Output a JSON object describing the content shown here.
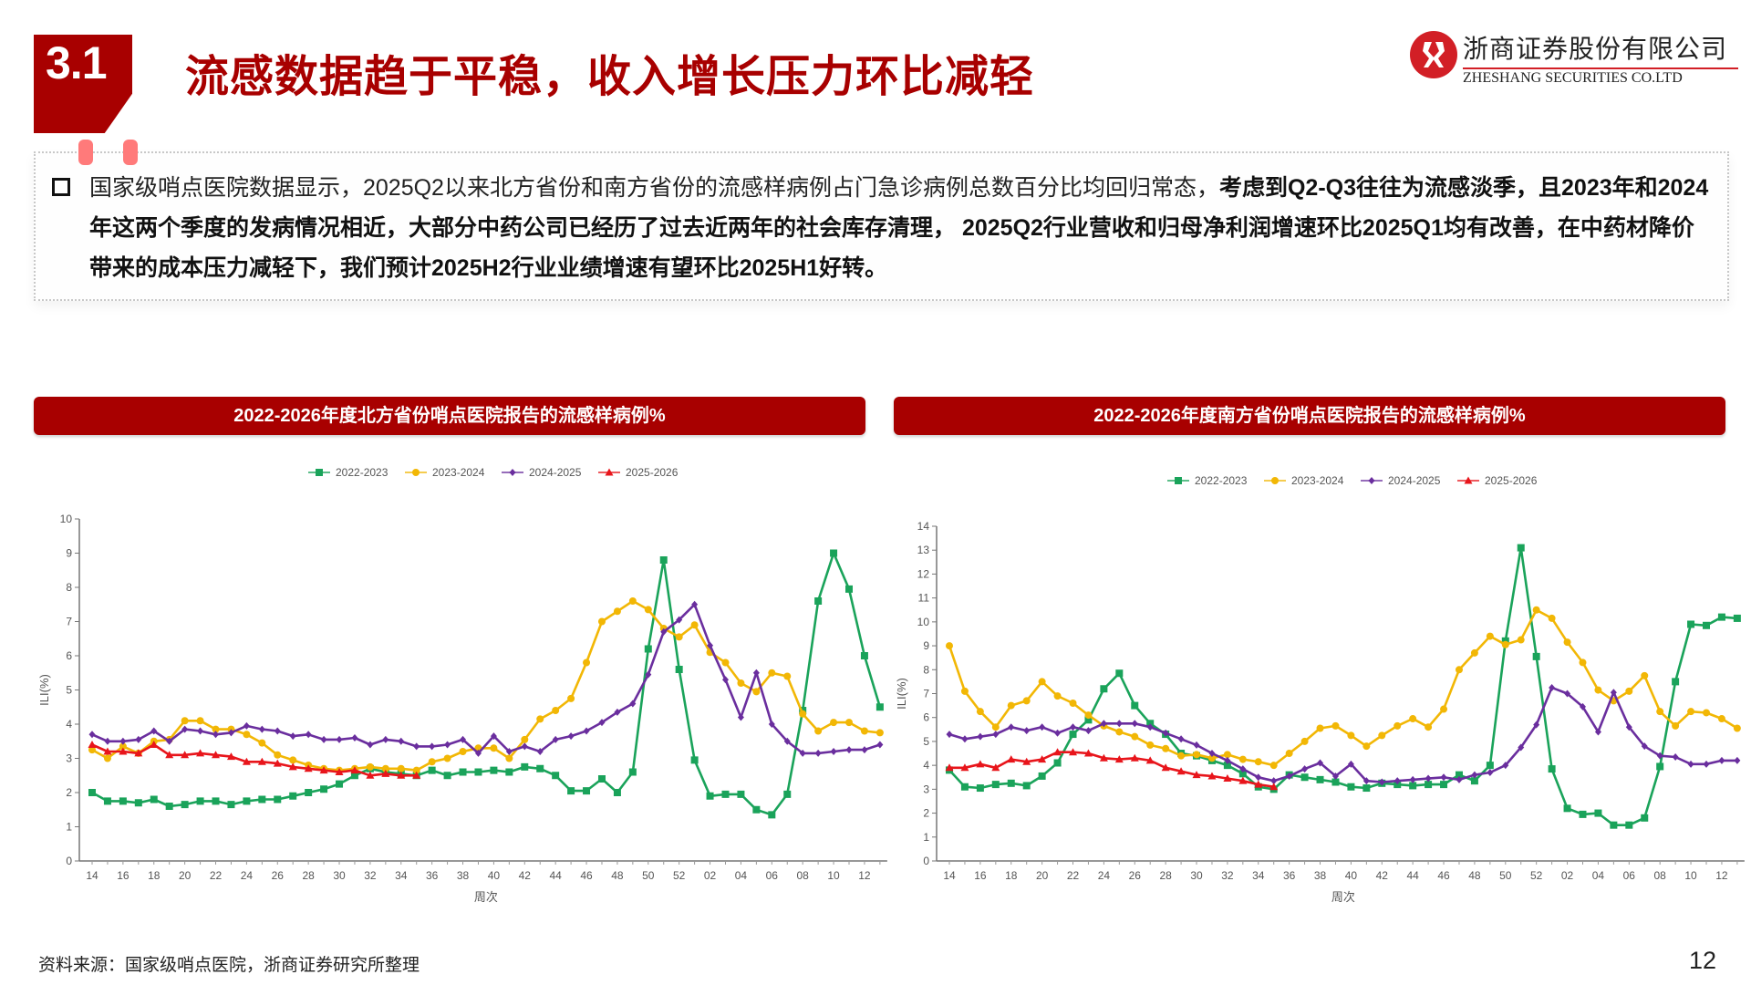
{
  "header": {
    "section_number": "3.1",
    "title": "流感数据趋于平稳，收入增长压力环比减轻",
    "logo_cn": "浙商证券股份有限公司",
    "logo_en": "ZHESHANG SECURITIES CO.LTD",
    "brand_color": "#a80000"
  },
  "summary": {
    "normal_text": "国家级哨点医院数据显示，2025Q2以来北方省份和南方省份的流感样病例占门急诊病例总数百分比均回归常态，",
    "bold_text": "考虑到Q2-Q3往往为流感淡季，且2023年和2024年这两个季度的发病情况相近，大部分中药公司已经历了过去近两年的社会库存清理， 2025Q2行业营收和归母净利润增速环比2025Q1均有改善，在中药材降价带来的成本压力减轻下，我们预计2025H2行业业绩增速有望环比2025H1好转。"
  },
  "footer": {
    "source": "资料来源：国家级哨点医院，浙商证券研究所整理",
    "page_number": "12"
  },
  "chart_data": [
    {
      "type": "line",
      "title": "2022-2026年度北方省份哨点医院报告的流感样病例%",
      "xlabel": "周次",
      "ylabel": "ILI(%)",
      "ylim": [
        0,
        10
      ],
      "yticks": [
        0,
        1,
        2,
        3,
        4,
        5,
        6,
        7,
        8,
        9,
        10
      ],
      "grid": false,
      "legend_position": "top",
      "x": [
        "14",
        "15",
        "16",
        "17",
        "18",
        "19",
        "20",
        "21",
        "22",
        "23",
        "24",
        "25",
        "26",
        "27",
        "28",
        "29",
        "30",
        "31",
        "32",
        "33",
        "34",
        "35",
        "36",
        "37",
        "38",
        "39",
        "40",
        "41",
        "42",
        "43",
        "44",
        "45",
        "46",
        "47",
        "48",
        "49",
        "50",
        "51",
        "52",
        "01",
        "02",
        "03",
        "04",
        "05",
        "06",
        "07",
        "08",
        "09",
        "10",
        "11",
        "12",
        "13"
      ],
      "xtick_labels": [
        "14",
        "16",
        "18",
        "20",
        "22",
        "24",
        "26",
        "28",
        "30",
        "32",
        "34",
        "36",
        "38",
        "40",
        "42",
        "44",
        "46",
        "48",
        "50",
        "52",
        "02",
        "04",
        "06",
        "08",
        "10",
        "12"
      ],
      "series": [
        {
          "name": "2022-2023",
          "color": "#1aa35a",
          "marker": "square",
          "values": [
            2.0,
            1.75,
            1.75,
            1.7,
            1.8,
            1.6,
            1.65,
            1.75,
            1.75,
            1.65,
            1.75,
            1.8,
            1.8,
            1.9,
            2.0,
            2.1,
            2.25,
            2.5,
            2.7,
            2.6,
            2.55,
            2.5,
            2.65,
            2.5,
            2.6,
            2.6,
            2.65,
            2.6,
            2.75,
            2.7,
            2.5,
            2.05,
            2.05,
            2.4,
            2.0,
            2.6,
            6.2,
            8.8,
            5.6,
            2.95,
            1.9,
            1.95,
            1.95,
            1.5,
            1.35,
            1.95,
            4.4,
            7.6,
            9.0,
            7.95,
            6.0,
            4.5
          ]
        },
        {
          "name": "2023-2024",
          "color": "#f2b705",
          "marker": "circle",
          "values": [
            3.25,
            3.0,
            3.35,
            3.15,
            3.5,
            3.55,
            4.1,
            4.1,
            3.85,
            3.85,
            3.7,
            3.45,
            3.1,
            2.95,
            2.8,
            2.7,
            2.65,
            2.7,
            2.75,
            2.7,
            2.7,
            2.65,
            2.9,
            3.0,
            3.2,
            3.3,
            3.3,
            3.0,
            3.55,
            4.15,
            4.4,
            4.75,
            5.8,
            7.0,
            7.3,
            7.6,
            7.35,
            6.8,
            6.55,
            6.9,
            6.1,
            5.8,
            5.2,
            4.95,
            5.5,
            5.4,
            4.3,
            3.8,
            4.05,
            4.05,
            3.8,
            3.75
          ]
        },
        {
          "name": "2024-2025",
          "color": "#6a2e9e",
          "marker": "diamond",
          "values": [
            3.7,
            3.5,
            3.5,
            3.55,
            3.8,
            3.5,
            3.85,
            3.8,
            3.7,
            3.75,
            3.95,
            3.85,
            3.8,
            3.65,
            3.7,
            3.55,
            3.55,
            3.6,
            3.4,
            3.55,
            3.5,
            3.35,
            3.35,
            3.4,
            3.55,
            3.15,
            3.65,
            3.2,
            3.35,
            3.2,
            3.55,
            3.65,
            3.8,
            4.05,
            4.35,
            4.6,
            5.45,
            6.7,
            7.05,
            7.5,
            6.3,
            5.3,
            4.2,
            5.5,
            4.0,
            3.5,
            3.15,
            3.15,
            3.2,
            3.25,
            3.25,
            3.4
          ]
        },
        {
          "name": "2025-2026",
          "color": "#e8151b",
          "marker": "triangle",
          "values": [
            3.4,
            3.2,
            3.2,
            3.15,
            3.4,
            3.1,
            3.1,
            3.15,
            3.1,
            3.05,
            2.9,
            2.9,
            2.85,
            2.75,
            2.7,
            2.65,
            2.6,
            2.65,
            2.5,
            2.55,
            2.5,
            2.5,
            null,
            null,
            null,
            null,
            null,
            null,
            null,
            null,
            null,
            null,
            null,
            null,
            null,
            null,
            null,
            null,
            null,
            null,
            null,
            null,
            null,
            null,
            null,
            null,
            null,
            null,
            null,
            null,
            null,
            null
          ]
        }
      ]
    },
    {
      "type": "line",
      "title": "2022-2026年度南方省份哨点医院报告的流感样病例%",
      "xlabel": "周次",
      "ylabel": "ILI(%)",
      "ylim": [
        0,
        14
      ],
      "yticks": [
        0,
        1,
        2,
        3,
        4,
        5,
        6,
        7,
        8,
        9,
        10,
        11,
        12,
        13,
        14
      ],
      "grid": false,
      "legend_position": "top",
      "x": [
        "14",
        "15",
        "16",
        "17",
        "18",
        "19",
        "20",
        "21",
        "22",
        "23",
        "24",
        "25",
        "26",
        "27",
        "28",
        "29",
        "30",
        "31",
        "32",
        "33",
        "34",
        "35",
        "36",
        "37",
        "38",
        "39",
        "40",
        "41",
        "42",
        "43",
        "44",
        "45",
        "46",
        "47",
        "48",
        "49",
        "50",
        "51",
        "52",
        "01",
        "02",
        "03",
        "04",
        "05",
        "06",
        "07",
        "08",
        "09",
        "10",
        "11",
        "12",
        "13"
      ],
      "xtick_labels": [
        "14",
        "16",
        "18",
        "20",
        "22",
        "24",
        "26",
        "28",
        "30",
        "32",
        "34",
        "36",
        "38",
        "40",
        "42",
        "44",
        "46",
        "48",
        "50",
        "52",
        "02",
        "04",
        "06",
        "08",
        "10",
        "12"
      ],
      "series": [
        {
          "name": "2022-2023",
          "color": "#1aa35a",
          "marker": "square",
          "values": [
            3.8,
            3.1,
            3.05,
            3.2,
            3.25,
            3.15,
            3.55,
            4.1,
            5.3,
            5.9,
            7.2,
            7.85,
            6.5,
            5.75,
            5.3,
            4.5,
            4.4,
            4.2,
            4.0,
            3.65,
            3.1,
            3.0,
            3.6,
            3.5,
            3.4,
            3.3,
            3.1,
            3.05,
            3.25,
            3.2,
            3.15,
            3.2,
            3.2,
            3.6,
            3.35,
            4.0,
            9.2,
            13.1,
            8.55,
            3.85,
            2.2,
            1.95,
            2.0,
            1.5,
            1.5,
            1.8,
            3.95,
            7.5,
            9.9,
            9.85,
            10.2,
            10.15
          ]
        },
        {
          "name": "2023-2024",
          "color": "#f2b705",
          "marker": "circle",
          "values": [
            9.0,
            7.1,
            6.25,
            5.6,
            6.5,
            6.7,
            7.5,
            6.9,
            6.6,
            6.1,
            5.65,
            5.4,
            5.2,
            4.85,
            4.7,
            4.4,
            4.45,
            4.3,
            4.45,
            4.25,
            4.15,
            4.0,
            4.5,
            5.0,
            5.55,
            5.65,
            5.25,
            4.8,
            5.25,
            5.65,
            5.95,
            5.6,
            6.35,
            8.0,
            8.7,
            9.4,
            9.05,
            9.25,
            10.5,
            10.15,
            9.15,
            8.3,
            7.15,
            6.7,
            7.1,
            7.75,
            6.25,
            5.65,
            6.25,
            6.2,
            5.95,
            5.55
          ]
        },
        {
          "name": "2024-2025",
          "color": "#6a2e9e",
          "marker": "diamond",
          "values": [
            5.3,
            5.1,
            5.2,
            5.3,
            5.6,
            5.45,
            5.6,
            5.35,
            5.6,
            5.45,
            5.75,
            5.75,
            5.75,
            5.6,
            5.35,
            5.1,
            4.85,
            4.5,
            4.2,
            3.85,
            3.5,
            3.35,
            3.55,
            3.85,
            4.1,
            3.55,
            4.05,
            3.35,
            3.3,
            3.35,
            3.4,
            3.45,
            3.5,
            3.4,
            3.6,
            3.7,
            4.0,
            4.75,
            5.7,
            7.25,
            7.0,
            6.45,
            5.4,
            7.05,
            5.6,
            4.8,
            4.4,
            4.35,
            4.05,
            4.05,
            4.2,
            4.2
          ]
        },
        {
          "name": "2025-2026",
          "color": "#e8151b",
          "marker": "triangle",
          "values": [
            3.9,
            3.9,
            4.05,
            3.9,
            4.25,
            4.15,
            4.25,
            4.55,
            4.55,
            4.5,
            4.3,
            4.25,
            4.3,
            4.2,
            3.9,
            3.75,
            3.6,
            3.55,
            3.45,
            3.35,
            3.2,
            3.1,
            null,
            null,
            null,
            null,
            null,
            null,
            null,
            null,
            null,
            null,
            null,
            null,
            null,
            null,
            null,
            null,
            null,
            null,
            null,
            null,
            null,
            null,
            null,
            null,
            null,
            null,
            null,
            null,
            null,
            null
          ]
        }
      ]
    }
  ]
}
